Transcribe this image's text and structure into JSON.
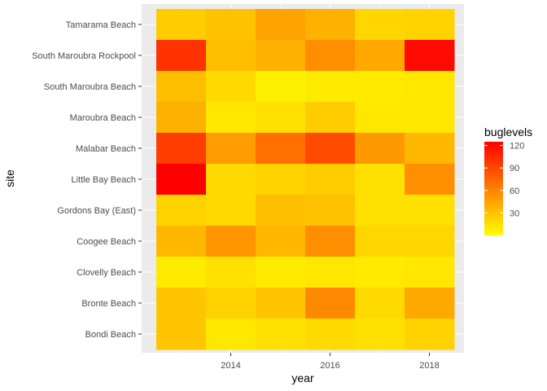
{
  "chart_data": {
    "type": "heatmap",
    "xlabel": "year",
    "ylabel": "site",
    "x": [
      2013,
      2014,
      2015,
      2016,
      2017,
      2018
    ],
    "x_ticks": [
      2014,
      2016,
      2018
    ],
    "y_categories": [
      "Tamarama Beach",
      "South Maroubra Rockpool",
      "South Maroubra Beach",
      "Maroubra Beach",
      "Malabar Beach",
      "Little Bay Beach",
      "Gordons Bay (East)",
      "Coogee Beach",
      "Clovelly Beach",
      "Bronte Beach",
      "Bondi Beach"
    ],
    "values": [
      [
        25,
        30,
        45,
        38,
        20,
        22
      ],
      [
        100,
        32,
        38,
        55,
        42,
        120
      ],
      [
        32,
        18,
        8,
        10,
        10,
        12
      ],
      [
        38,
        12,
        15,
        25,
        12,
        12
      ],
      [
        95,
        48,
        70,
        88,
        50,
        35
      ],
      [
        125,
        18,
        22,
        25,
        15,
        55
      ],
      [
        22,
        18,
        32,
        30,
        15,
        15
      ],
      [
        35,
        52,
        35,
        55,
        20,
        20
      ],
      [
        10,
        15,
        10,
        12,
        10,
        12
      ],
      [
        28,
        22,
        28,
        58,
        18,
        42
      ],
      [
        28,
        12,
        15,
        18,
        15,
        22
      ]
    ],
    "color_scale": {
      "low": "#FFFF00",
      "high": "#FF0000",
      "min": 0,
      "max": 125
    },
    "legend": {
      "title": "buglevels",
      "ticks": [
        120,
        90,
        60,
        30
      ],
      "placement": "right"
    },
    "grid": true,
    "panel_background": "#EBEBEB"
  }
}
